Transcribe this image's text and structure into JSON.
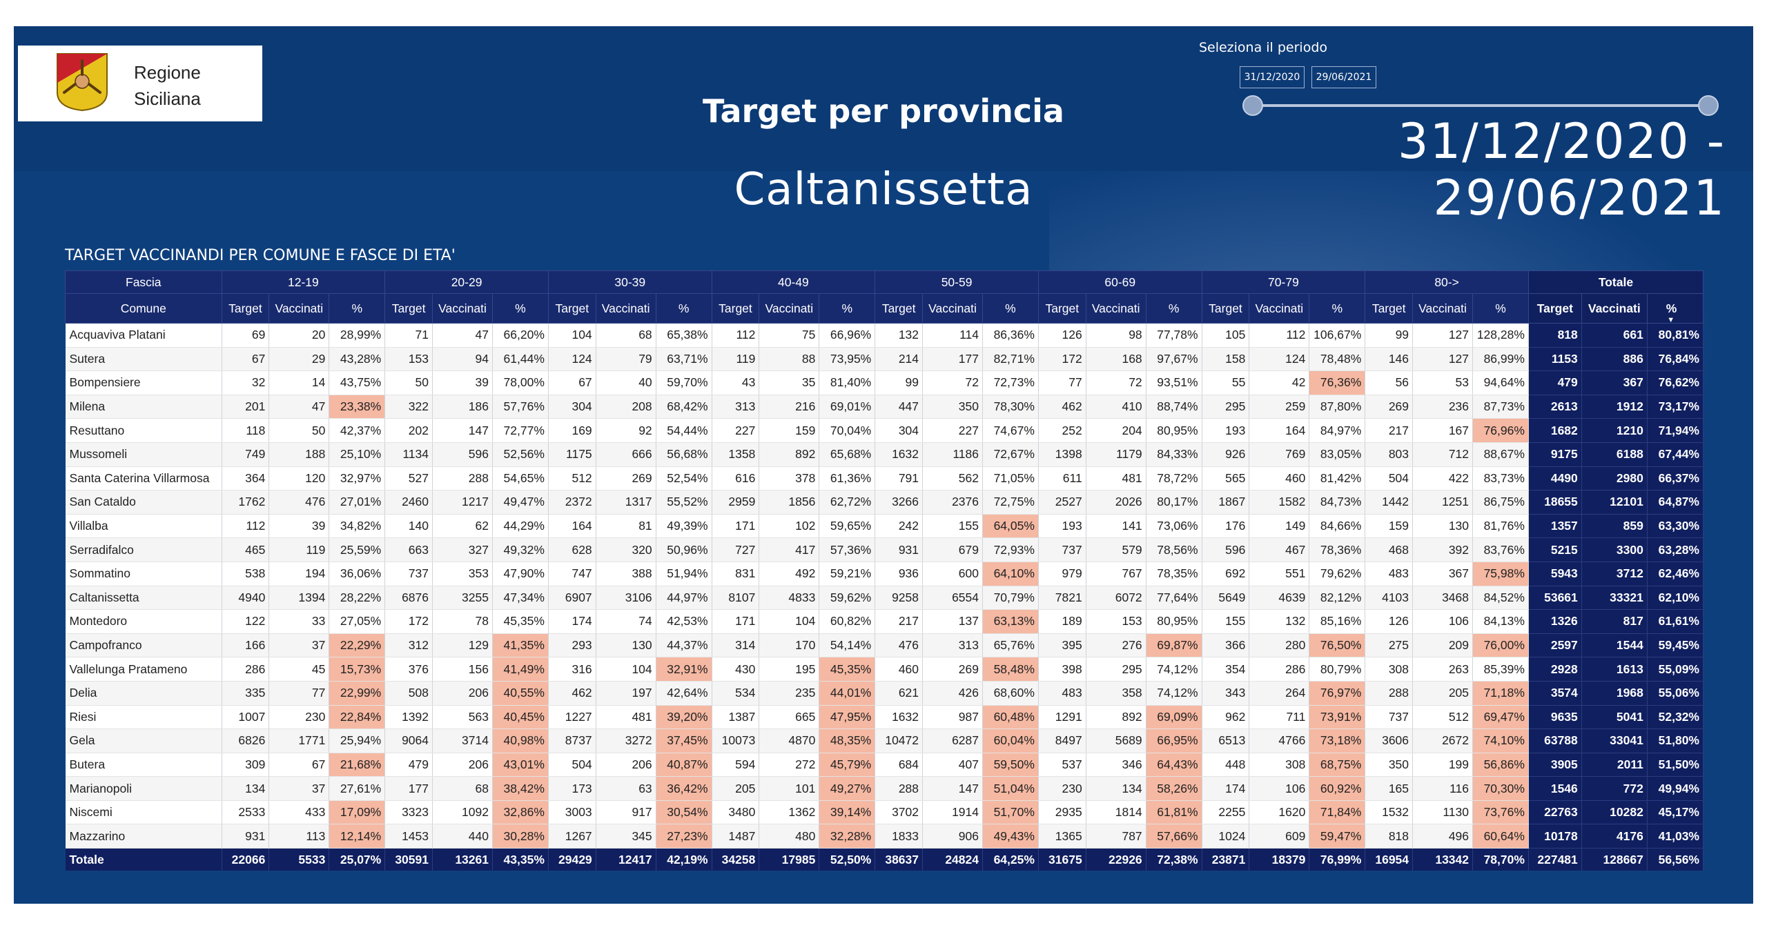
{
  "header": {
    "region_line1": "Regione",
    "region_line2": "Siciliana",
    "title": "Target per provincia",
    "province": "Caltanissetta",
    "period_label": "Seleziona il periodo",
    "date_start": "31/12/2020",
    "date_end": "29/06/2021",
    "period_display": "31/12/2020 - 29/06/2021"
  },
  "table": {
    "title": "TARGET VACCINANDI PER COMUNE E FASCE DI ETA'",
    "fascia_label": "Fascia",
    "comune_label": "Comune",
    "groups": [
      "12-19",
      "20-29",
      "30-39",
      "40-49",
      "50-59",
      "60-69",
      "70-79",
      "80->",
      "Totale"
    ],
    "sub_headers": [
      "Target",
      "Vaccinati",
      "%"
    ],
    "sort_icon": "sort-descending-icon",
    "rows": [
      {
        "comune": "Acquaviva Platani",
        "cells": [
          "69",
          "20",
          "28,99%",
          "71",
          "47",
          "66,20%",
          "104",
          "68",
          "65,38%",
          "112",
          "75",
          "66,96%",
          "132",
          "114",
          "86,36%",
          "126",
          "98",
          "77,78%",
          "105",
          "112",
          "106,67%",
          "99",
          "127",
          "128,28%",
          "818",
          "661",
          "80,81%"
        ],
        "hl": []
      },
      {
        "comune": "Sutera",
        "cells": [
          "67",
          "29",
          "43,28%",
          "153",
          "94",
          "61,44%",
          "124",
          "79",
          "63,71%",
          "119",
          "88",
          "73,95%",
          "214",
          "177",
          "82,71%",
          "172",
          "168",
          "97,67%",
          "158",
          "124",
          "78,48%",
          "146",
          "127",
          "86,99%",
          "1153",
          "886",
          "76,84%"
        ],
        "hl": []
      },
      {
        "comune": "Bompensiere",
        "cells": [
          "32",
          "14",
          "43,75%",
          "50",
          "39",
          "78,00%",
          "67",
          "40",
          "59,70%",
          "43",
          "35",
          "81,40%",
          "99",
          "72",
          "72,73%",
          "77",
          "72",
          "93,51%",
          "55",
          "42",
          "76,36%",
          "56",
          "53",
          "94,64%",
          "479",
          "367",
          "76,62%"
        ],
        "hl": [
          20
        ]
      },
      {
        "comune": "Milena",
        "cells": [
          "201",
          "47",
          "23,38%",
          "322",
          "186",
          "57,76%",
          "304",
          "208",
          "68,42%",
          "313",
          "216",
          "69,01%",
          "447",
          "350",
          "78,30%",
          "462",
          "410",
          "88,74%",
          "295",
          "259",
          "87,80%",
          "269",
          "236",
          "87,73%",
          "2613",
          "1912",
          "73,17%"
        ],
        "hl": [
          2
        ]
      },
      {
        "comune": "Resuttano",
        "cells": [
          "118",
          "50",
          "42,37%",
          "202",
          "147",
          "72,77%",
          "169",
          "92",
          "54,44%",
          "227",
          "159",
          "70,04%",
          "304",
          "227",
          "74,67%",
          "252",
          "204",
          "80,95%",
          "193",
          "164",
          "84,97%",
          "217",
          "167",
          "76,96%",
          "1682",
          "1210",
          "71,94%"
        ],
        "hl": [
          23
        ]
      },
      {
        "comune": "Mussomeli",
        "cells": [
          "749",
          "188",
          "25,10%",
          "1134",
          "596",
          "52,56%",
          "1175",
          "666",
          "56,68%",
          "1358",
          "892",
          "65,68%",
          "1632",
          "1186",
          "72,67%",
          "1398",
          "1179",
          "84,33%",
          "926",
          "769",
          "83,05%",
          "803",
          "712",
          "88,67%",
          "9175",
          "6188",
          "67,44%"
        ],
        "hl": []
      },
      {
        "comune": "Santa Caterina Villarmosa",
        "cells": [
          "364",
          "120",
          "32,97%",
          "527",
          "288",
          "54,65%",
          "512",
          "269",
          "52,54%",
          "616",
          "378",
          "61,36%",
          "791",
          "562",
          "71,05%",
          "611",
          "481",
          "78,72%",
          "565",
          "460",
          "81,42%",
          "504",
          "422",
          "83,73%",
          "4490",
          "2980",
          "66,37%"
        ],
        "hl": []
      },
      {
        "comune": "San Cataldo",
        "cells": [
          "1762",
          "476",
          "27,01%",
          "2460",
          "1217",
          "49,47%",
          "2372",
          "1317",
          "55,52%",
          "2959",
          "1856",
          "62,72%",
          "3266",
          "2376",
          "72,75%",
          "2527",
          "2026",
          "80,17%",
          "1867",
          "1582",
          "84,73%",
          "1442",
          "1251",
          "86,75%",
          "18655",
          "12101",
          "64,87%"
        ],
        "hl": []
      },
      {
        "comune": "Villalba",
        "cells": [
          "112",
          "39",
          "34,82%",
          "140",
          "62",
          "44,29%",
          "164",
          "81",
          "49,39%",
          "171",
          "102",
          "59,65%",
          "242",
          "155",
          "64,05%",
          "193",
          "141",
          "73,06%",
          "176",
          "149",
          "84,66%",
          "159",
          "130",
          "81,76%",
          "1357",
          "859",
          "63,30%"
        ],
        "hl": [
          14
        ]
      },
      {
        "comune": "Serradifalco",
        "cells": [
          "465",
          "119",
          "25,59%",
          "663",
          "327",
          "49,32%",
          "628",
          "320",
          "50,96%",
          "727",
          "417",
          "57,36%",
          "931",
          "679",
          "72,93%",
          "737",
          "579",
          "78,56%",
          "596",
          "467",
          "78,36%",
          "468",
          "392",
          "83,76%",
          "5215",
          "3300",
          "63,28%"
        ],
        "hl": []
      },
      {
        "comune": "Sommatino",
        "cells": [
          "538",
          "194",
          "36,06%",
          "737",
          "353",
          "47,90%",
          "747",
          "388",
          "51,94%",
          "831",
          "492",
          "59,21%",
          "936",
          "600",
          "64,10%",
          "979",
          "767",
          "78,35%",
          "692",
          "551",
          "79,62%",
          "483",
          "367",
          "75,98%",
          "5943",
          "3712",
          "62,46%"
        ],
        "hl": [
          14,
          23
        ]
      },
      {
        "comune": "Caltanissetta",
        "cells": [
          "4940",
          "1394",
          "28,22%",
          "6876",
          "3255",
          "47,34%",
          "6907",
          "3106",
          "44,97%",
          "8107",
          "4833",
          "59,62%",
          "9258",
          "6554",
          "70,79%",
          "7821",
          "6072",
          "77,64%",
          "5649",
          "4639",
          "82,12%",
          "4103",
          "3468",
          "84,52%",
          "53661",
          "33321",
          "62,10%"
        ],
        "hl": []
      },
      {
        "comune": "Montedoro",
        "cells": [
          "122",
          "33",
          "27,05%",
          "172",
          "78",
          "45,35%",
          "174",
          "74",
          "42,53%",
          "171",
          "104",
          "60,82%",
          "217",
          "137",
          "63,13%",
          "189",
          "153",
          "80,95%",
          "155",
          "132",
          "85,16%",
          "126",
          "106",
          "84,13%",
          "1326",
          "817",
          "61,61%"
        ],
        "hl": [
          14
        ]
      },
      {
        "comune": "Campofranco",
        "cells": [
          "166",
          "37",
          "22,29%",
          "312",
          "129",
          "41,35%",
          "293",
          "130",
          "44,37%",
          "314",
          "170",
          "54,14%",
          "476",
          "313",
          "65,76%",
          "395",
          "276",
          "69,87%",
          "366",
          "280",
          "76,50%",
          "275",
          "209",
          "76,00%",
          "2597",
          "1544",
          "59,45%"
        ],
        "hl": [
          2,
          5,
          17,
          20,
          23
        ]
      },
      {
        "comune": "Vallelunga Pratameno",
        "cells": [
          "286",
          "45",
          "15,73%",
          "376",
          "156",
          "41,49%",
          "316",
          "104",
          "32,91%",
          "430",
          "195",
          "45,35%",
          "460",
          "269",
          "58,48%",
          "398",
          "295",
          "74,12%",
          "354",
          "286",
          "80,79%",
          "308",
          "263",
          "85,39%",
          "2928",
          "1613",
          "55,09%"
        ],
        "hl": [
          2,
          5,
          8,
          11,
          14
        ]
      },
      {
        "comune": "Delia",
        "cells": [
          "335",
          "77",
          "22,99%",
          "508",
          "206",
          "40,55%",
          "462",
          "197",
          "42,64%",
          "534",
          "235",
          "44,01%",
          "621",
          "426",
          "68,60%",
          "483",
          "358",
          "74,12%",
          "343",
          "264",
          "76,97%",
          "288",
          "205",
          "71,18%",
          "3574",
          "1968",
          "55,06%"
        ],
        "hl": [
          2,
          5,
          11,
          20,
          23
        ]
      },
      {
        "comune": "Riesi",
        "cells": [
          "1007",
          "230",
          "22,84%",
          "1392",
          "563",
          "40,45%",
          "1227",
          "481",
          "39,20%",
          "1387",
          "665",
          "47,95%",
          "1632",
          "987",
          "60,48%",
          "1291",
          "892",
          "69,09%",
          "962",
          "711",
          "73,91%",
          "737",
          "512",
          "69,47%",
          "9635",
          "5041",
          "52,32%"
        ],
        "hl": [
          2,
          5,
          8,
          11,
          14,
          17,
          20,
          23
        ]
      },
      {
        "comune": "Gela",
        "cells": [
          "6826",
          "1771",
          "25,94%",
          "9064",
          "3714",
          "40,98%",
          "8737",
          "3272",
          "37,45%",
          "10073",
          "4870",
          "48,35%",
          "10472",
          "6287",
          "60,04%",
          "8497",
          "5689",
          "66,95%",
          "6513",
          "4766",
          "73,18%",
          "3606",
          "2672",
          "74,10%",
          "63788",
          "33041",
          "51,80%"
        ],
        "hl": [
          5,
          8,
          11,
          14,
          17,
          20,
          23
        ]
      },
      {
        "comune": "Butera",
        "cells": [
          "309",
          "67",
          "21,68%",
          "479",
          "206",
          "43,01%",
          "504",
          "206",
          "40,87%",
          "594",
          "272",
          "45,79%",
          "684",
          "407",
          "59,50%",
          "537",
          "346",
          "64,43%",
          "448",
          "308",
          "68,75%",
          "350",
          "199",
          "56,86%",
          "3905",
          "2011",
          "51,50%"
        ],
        "hl": [
          2,
          5,
          8,
          11,
          14,
          17,
          20,
          23
        ]
      },
      {
        "comune": "Marianopoli",
        "cells": [
          "134",
          "37",
          "27,61%",
          "177",
          "68",
          "38,42%",
          "173",
          "63",
          "36,42%",
          "205",
          "101",
          "49,27%",
          "288",
          "147",
          "51,04%",
          "230",
          "134",
          "58,26%",
          "174",
          "106",
          "60,92%",
          "165",
          "116",
          "70,30%",
          "1546",
          "772",
          "49,94%"
        ],
        "hl": [
          5,
          8,
          11,
          14,
          17,
          20,
          23
        ]
      },
      {
        "comune": "Niscemi",
        "cells": [
          "2533",
          "433",
          "17,09%",
          "3323",
          "1092",
          "32,86%",
          "3003",
          "917",
          "30,54%",
          "3480",
          "1362",
          "39,14%",
          "3702",
          "1914",
          "51,70%",
          "2935",
          "1814",
          "61,81%",
          "2255",
          "1620",
          "71,84%",
          "1532",
          "1130",
          "73,76%",
          "22763",
          "10282",
          "45,17%"
        ],
        "hl": [
          2,
          5,
          8,
          11,
          14,
          17,
          20,
          23
        ]
      },
      {
        "comune": "Mazzarino",
        "cells": [
          "931",
          "113",
          "12,14%",
          "1453",
          "440",
          "30,28%",
          "1267",
          "345",
          "27,23%",
          "1487",
          "480",
          "32,28%",
          "1833",
          "906",
          "49,43%",
          "1365",
          "787",
          "57,66%",
          "1024",
          "609",
          "59,47%",
          "818",
          "496",
          "60,64%",
          "10178",
          "4176",
          "41,03%"
        ],
        "hl": [
          2,
          5,
          8,
          11,
          14,
          17,
          20,
          23
        ]
      }
    ],
    "totals": {
      "label": "Totale",
      "cells": [
        "22066",
        "5533",
        "25,07%",
        "30591",
        "13261",
        "43,35%",
        "29429",
        "12417",
        "42,19%",
        "34258",
        "17985",
        "52,50%",
        "38637",
        "24824",
        "64,25%",
        "31675",
        "22926",
        "72,38%",
        "23871",
        "18379",
        "76,99%",
        "16954",
        "13342",
        "78,70%",
        "227481",
        "128667",
        "56,56%"
      ]
    }
  }
}
